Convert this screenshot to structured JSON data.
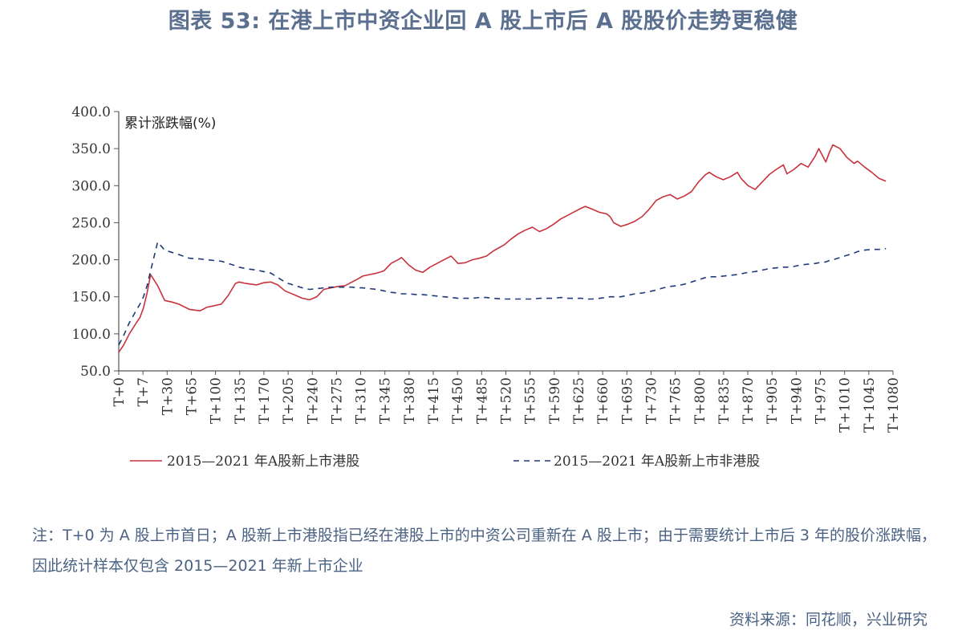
{
  "title": "图表 53: 在港上市中资企业回 A 股上市后 A 股股价走势更稳健",
  "note": "注：T+0 为 A 股上市首日；A 股新上市港股指已经在港股上市的中资公司重新在 A 股上市；由于需要统计上市后 3 年的股价涨跌幅，因此统计样本仅包含 2015—2021 年新上市企业",
  "source": "资料来源：同花顺，兴业研究",
  "colors": {
    "series1": "#c8323c",
    "series2": "#1f3a7a",
    "axis": "#555555"
  },
  "chart_data": {
    "type": "line",
    "ylabel": "累计涨跌幅(%)",
    "xlabel": "",
    "ylim": [
      50,
      400
    ],
    "yticks": [
      "400.0",
      "350.0",
      "300.0",
      "250.0",
      "200.0",
      "150.0",
      "100.0",
      "50.0"
    ],
    "xlim": [
      0,
      1095
    ],
    "x_tick_labels": [
      "T+0",
      "T+7",
      "T+30",
      "T+65",
      "T+100",
      "T+135",
      "T+170",
      "T+205",
      "T+240",
      "T+275",
      "T+310",
      "T+345",
      "T+380",
      "T+415",
      "T+450",
      "T+485",
      "T+520",
      "T+555",
      "T+590",
      "T+625",
      "T+660",
      "T+695",
      "T+730",
      "T+765",
      "T+800",
      "T+835",
      "T+870",
      "T+905",
      "T+940",
      "T+975",
      "T+1010",
      "T+1045",
      "T+1080"
    ],
    "legend_position": "bottom",
    "series": [
      {
        "name": "2015—2021 年A股新上市港股",
        "style": "solid",
        "x": [
          0,
          7,
          15,
          25,
          30,
          35,
          40,
          45,
          55,
          65,
          75,
          85,
          100,
          115,
          125,
          135,
          145,
          155,
          165,
          170,
          180,
          195,
          205,
          215,
          225,
          235,
          240,
          250,
          260,
          270,
          280,
          290,
          300,
          310,
          320,
          330,
          340,
          345,
          355,
          365,
          375,
          385,
          395,
          400,
          405,
          410,
          420,
          430,
          440,
          450,
          460,
          470,
          480,
          490,
          500,
          510,
          520,
          530,
          545,
          555,
          565,
          575,
          585,
          595,
          605,
          615,
          625,
          635,
          645,
          655,
          660,
          670,
          680,
          690,
          695,
          700,
          710,
          720,
          730,
          740,
          750,
          760,
          770,
          780,
          790,
          800,
          810,
          820,
          830,
          835,
          845,
          855,
          865,
          875,
          880,
          890,
          900,
          910,
          920,
          930,
          940,
          945,
          955,
          965,
          975,
          985,
          990,
          1000,
          1005,
          1010,
          1020,
          1030,
          1040,
          1045,
          1055,
          1065,
          1075,
          1085
        ],
        "values": [
          75,
          85,
          100,
          115,
          122,
          135,
          155,
          180,
          165,
          145,
          143,
          140,
          133,
          131,
          136,
          138,
          140,
          152,
          168,
          170,
          168,
          166,
          169,
          170,
          166,
          158,
          156,
          152,
          148,
          146,
          150,
          160,
          162,
          164,
          165,
          170,
          175,
          178,
          180,
          182,
          185,
          195,
          200,
          203,
          198,
          193,
          186,
          183,
          190,
          195,
          200,
          205,
          195,
          196,
          200,
          202,
          205,
          212,
          220,
          228,
          235,
          240,
          244,
          238,
          242,
          248,
          255,
          260,
          265,
          270,
          272,
          268,
          264,
          262,
          258,
          250,
          245,
          248,
          252,
          258,
          268,
          280,
          285,
          288,
          282,
          286,
          292,
          305,
          315,
          318,
          312,
          308,
          312,
          318,
          310,
          300,
          295,
          305,
          315,
          322,
          328,
          316,
          322,
          330,
          325,
          340,
          350,
          332,
          345,
          355,
          350,
          338,
          330,
          333,
          325,
          318,
          310,
          306
        ]
      },
      {
        "name": "2015—2021 年A股新上市非港股",
        "style": "dashed",
        "x": [
          0,
          7,
          15,
          25,
          30,
          35,
          40,
          45,
          55,
          65,
          75,
          85,
          100,
          115,
          125,
          135,
          145,
          155,
          165,
          170,
          180,
          195,
          205,
          215,
          225,
          235,
          240,
          250,
          260,
          270,
          280,
          290,
          300,
          310,
          320,
          330,
          340,
          345,
          355,
          365,
          375,
          385,
          395,
          400,
          405,
          410,
          420,
          430,
          440,
          450,
          460,
          470,
          480,
          490,
          500,
          510,
          520,
          530,
          545,
          555,
          565,
          575,
          585,
          595,
          605,
          615,
          625,
          635,
          645,
          655,
          660,
          670,
          680,
          690,
          695,
          700,
          710,
          720,
          730,
          740,
          750,
          760,
          770,
          780,
          790,
          800,
          810,
          820,
          830,
          835,
          845,
          855,
          865,
          875,
          880,
          890,
          900,
          910,
          920,
          930,
          940,
          945,
          955,
          965,
          975,
          985,
          990,
          1000,
          1005,
          1010,
          1020,
          1030,
          1040,
          1045,
          1055,
          1065,
          1075,
          1085
        ],
        "values": [
          85,
          98,
          115,
          132,
          140,
          150,
          165,
          185,
          224,
          213,
          210,
          207,
          202,
          201,
          200,
          199,
          198,
          195,
          192,
          190,
          188,
          186,
          184,
          182,
          176,
          170,
          168,
          165,
          162,
          160,
          161,
          162,
          163,
          163,
          163,
          163,
          162,
          162,
          161,
          160,
          158,
          156,
          155,
          154,
          154,
          154,
          153,
          153,
          152,
          151,
          150,
          149,
          148,
          148,
          148,
          149,
          149,
          148,
          147,
          147,
          147,
          147,
          147,
          148,
          148,
          148,
          149,
          148,
          148,
          148,
          147,
          147,
          148,
          149,
          150,
          150,
          150,
          152,
          154,
          155,
          157,
          159,
          162,
          164,
          165,
          167,
          170,
          173,
          176,
          177,
          177,
          178,
          179,
          180,
          181,
          183,
          184,
          186,
          188,
          189,
          190,
          190,
          191,
          193,
          194,
          195,
          196,
          197,
          199,
          200,
          203,
          206,
          209,
          211,
          213,
          214,
          214,
          215
        ]
      }
    ]
  }
}
